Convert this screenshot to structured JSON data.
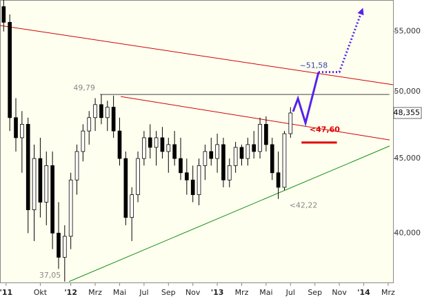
{
  "chart_data": {
    "type": "candlestick",
    "log_scale": true,
    "up_color": "#ffffff",
    "down_color": "#000000",
    "edge_color": "#000000",
    "x": [
      6.5,
      7,
      7.5,
      8,
      8.5,
      9,
      9.5,
      10,
      10.5,
      11,
      11.5,
      12,
      12.5,
      13,
      13.5,
      14,
      14.5,
      15,
      15.5,
      16,
      16.5,
      17,
      17.5,
      18,
      18.5,
      19,
      19.5,
      20,
      20.5,
      21,
      21.5,
      22,
      22.5,
      23,
      23.5,
      24,
      24.5,
      25,
      25.5,
      26,
      26.5,
      27,
      27.5,
      28,
      28.5,
      29,
      29.5,
      30
    ],
    "open": [
      57200,
      55800,
      48000,
      46500,
      47500,
      41500,
      45000,
      42000,
      44500,
      40000,
      38500,
      39800,
      43500,
      45500,
      47000,
      48000,
      49000,
      48000,
      48800,
      47000,
      45000,
      41000,
      42500,
      45000,
      46500,
      45800,
      46500,
      45500,
      46000,
      45000,
      44000,
      43500,
      42500,
      44500,
      45500,
      45000,
      46000,
      43500,
      44500,
      45800,
      45000,
      46000,
      45500,
      47500,
      46000,
      44000,
      43000,
      46800
    ],
    "high": [
      57800,
      56500,
      49500,
      48500,
      48000,
      46000,
      46500,
      45500,
      45500,
      42000,
      40500,
      44000,
      46000,
      47500,
      48500,
      49500,
      49790,
      49300,
      49700,
      48000,
      45500,
      43000,
      45500,
      47000,
      47500,
      47000,
      47300,
      46500,
      47000,
      46500,
      45000,
      44500,
      45000,
      46000,
      46500,
      46800,
      46500,
      45000,
      46200,
      46000,
      46500,
      47000,
      48000,
      48100,
      46500,
      45500,
      47000,
      48800
    ],
    "low": [
      55000,
      47000,
      45500,
      44000,
      40000,
      39500,
      41000,
      40500,
      39000,
      37800,
      37050,
      39000,
      42500,
      44800,
      46000,
      47000,
      47500,
      47000,
      46500,
      44500,
      40500,
      39500,
      42000,
      44500,
      45000,
      44500,
      45000,
      44000,
      44500,
      43500,
      42500,
      42000,
      41800,
      43500,
      44500,
      44000,
      43000,
      43000,
      44000,
      44500,
      44500,
      45000,
      45000,
      45500,
      43500,
      42220,
      42800,
      46500
    ],
    "close": [
      55800,
      48000,
      46500,
      47500,
      41500,
      45000,
      42000,
      44500,
      40000,
      38500,
      39800,
      43500,
      45500,
      47000,
      48000,
      49000,
      48000,
      48800,
      47000,
      45000,
      41000,
      42500,
      45000,
      46500,
      45800,
      46500,
      45500,
      46000,
      45000,
      44000,
      43500,
      42500,
      44500,
      45500,
      45000,
      46000,
      43500,
      44500,
      45800,
      45000,
      46000,
      45500,
      47500,
      46000,
      44000,
      43000,
      46800,
      48355
    ],
    "xlim": [
      6.2,
      38.4
    ],
    "ylim": [
      37000,
      57800
    ],
    "xticks": [
      {
        "value": 6.7,
        "label": "'11"
      },
      {
        "value": 9.5,
        "label": "Okt"
      },
      {
        "value": 12,
        "label": "'12"
      },
      {
        "value": 14,
        "label": "Mrz"
      },
      {
        "value": 16,
        "label": "Mai"
      },
      {
        "value": 18,
        "label": "Jul"
      },
      {
        "value": 20,
        "label": "Sep"
      },
      {
        "value": 22,
        "label": "Nov"
      },
      {
        "value": 24,
        "label": "'13"
      },
      {
        "value": 26,
        "label": "Mrz"
      },
      {
        "value": 28,
        "label": "Mai"
      },
      {
        "value": 30,
        "label": "Jul"
      },
      {
        "value": 32,
        "label": "Sep"
      },
      {
        "value": 34,
        "label": "Nov"
      },
      {
        "value": 36,
        "label": "'14"
      },
      {
        "value": 38,
        "label": "Mrz"
      }
    ],
    "yticks": [
      {
        "value": 40000,
        "label": "40,000"
      },
      {
        "value": 45000,
        "label": "45,000"
      },
      {
        "value": 50000,
        "label": "50,000"
      },
      {
        "value": 55000,
        "label": "55,000"
      }
    ],
    "lines": [
      {
        "color": "#d00000",
        "style": "solid",
        "x": [
          6.2,
          38.4
        ],
        "y": [
          55520,
          50560
        ]
      },
      {
        "color": "#d00000",
        "style": "solid",
        "x": [
          16.09,
          38.12
        ],
        "y": [
          49630,
          46340
        ]
      },
      {
        "color": "#109010",
        "style": "solid",
        "x": [
          11.85,
          38.12
        ],
        "y": [
          37050,
          45900
        ]
      },
      {
        "color": "#404040",
        "style": "solid",
        "x": [
          14.4,
          38.1
        ],
        "y": [
          49790,
          49790
        ]
      },
      {
        "color": "#e00000",
        "style": "thick",
        "x": [
          30.9,
          33.8
        ],
        "y": [
          46150,
          46150
        ]
      },
      {
        "color": "#5522ee",
        "style": "thick",
        "x": [
          30.21,
          30.61,
          31.23,
          32.3
        ],
        "y": [
          48460,
          49470,
          47600,
          51580
        ]
      },
      {
        "color": "#5522ee",
        "style": "dotted",
        "x": [
          32.3,
          34.0,
          35.86
        ],
        "y": [
          51580,
          51580,
          56860
        ]
      }
    ],
    "annotations": [
      {
        "text": "49,79",
        "x": 13.1,
        "y": 49790,
        "side": "above",
        "color": "#888888"
      },
      {
        "text": "37,05",
        "x": 10.3,
        "y": 37050,
        "side": "above",
        "color": "#888888"
      },
      {
        "text": "<42,22",
        "x": 31.06,
        "y": 42220,
        "side": "below",
        "color": "#888888"
      },
      {
        "text": "~51,58",
        "x": 31.9,
        "y": 51580,
        "side": "above",
        "color": "#3344aa"
      },
      {
        "text": "<47,60",
        "x": 32.8,
        "y": 47600,
        "side": "below",
        "color": "#e00000"
      }
    ],
    "last_price": {
      "value": 48355,
      "label": "48,355"
    }
  }
}
